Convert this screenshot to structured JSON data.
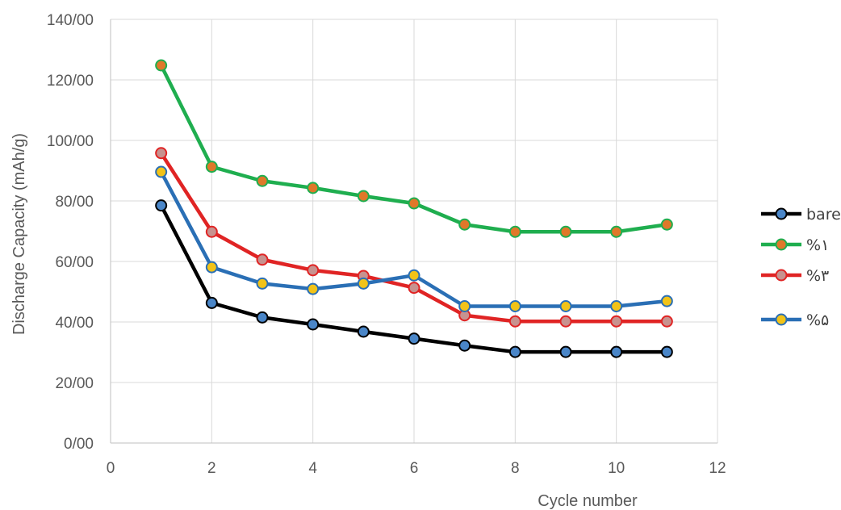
{
  "chart_data": {
    "type": "line",
    "xlabel": "Cycle number",
    "ylabel": "Discharge Capacity (mAh/g)",
    "xlim": [
      0,
      12
    ],
    "ylim": [
      0,
      140
    ],
    "x_ticks": [
      0,
      2,
      4,
      6,
      8,
      10,
      12
    ],
    "x_tick_labels": [
      "0",
      "2",
      "4",
      "6",
      "8",
      "10",
      "12"
    ],
    "y_ticks": [
      0,
      20,
      40,
      60,
      80,
      100,
      120,
      140
    ],
    "y_tick_labels": [
      "0/00",
      "20/00",
      "40/00",
      "60/00",
      "80/00",
      "100/00",
      "120/00",
      "140/00"
    ],
    "grid": true,
    "legend_position": "right",
    "x": [
      1,
      2,
      3,
      4,
      5,
      6,
      7,
      8,
      9,
      10,
      11
    ],
    "series": [
      {
        "name": "bare",
        "line_color": "#000000",
        "marker_color": "#4a86c8",
        "values": [
          78.5,
          46.3,
          41.5,
          39.2,
          36.8,
          34.5,
          32.2,
          30.1,
          30.1,
          30.1,
          30.1
        ]
      },
      {
        "name": "%١",
        "line_color": "#1fae4f",
        "marker_color": "#e0782a",
        "values": [
          124.8,
          91.3,
          86.6,
          84.3,
          81.6,
          79.2,
          72.2,
          69.8,
          69.8,
          69.8,
          72.2
        ]
      },
      {
        "name": "%۳",
        "line_color": "#e02424",
        "marker_color": "#c8928f",
        "values": [
          95.8,
          69.8,
          60.6,
          57.1,
          55.2,
          51.3,
          42.2,
          40.2,
          40.2,
          40.2,
          40.2
        ]
      },
      {
        "name": "%۵",
        "line_color": "#2a6fb5",
        "marker_color": "#f2c318",
        "values": [
          89.6,
          58.1,
          52.7,
          50.9,
          52.7,
          55.4,
          45.2,
          45.2,
          45.2,
          45.2,
          46.9
        ]
      }
    ]
  }
}
